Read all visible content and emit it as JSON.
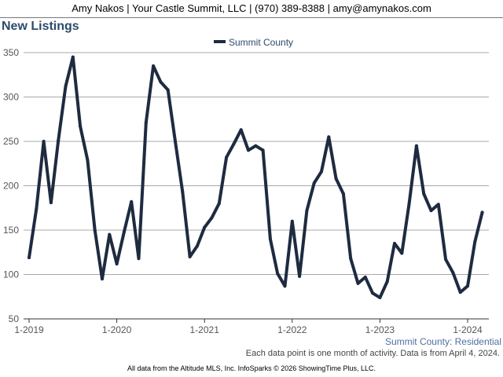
{
  "header": {
    "contact": "Amy Nakos | Your Castle Summit, LLC | (970) 389-8388 | amy@amynakos.com"
  },
  "chart_data": {
    "type": "line",
    "title": "New Listings",
    "xlabel": "",
    "ylabel": "",
    "ylim": [
      50,
      350
    ],
    "yticks": [
      50,
      100,
      150,
      200,
      250,
      300,
      350
    ],
    "xtick_labels": [
      "1-2019",
      "1-2020",
      "1-2021",
      "1-2022",
      "1-2023",
      "1-2024"
    ],
    "grid": true,
    "legend": "top-center",
    "series": [
      {
        "name": "Summit County",
        "color": "#1e2b40",
        "x": [
          "2019-01",
          "2019-02",
          "2019-03",
          "2019-04",
          "2019-05",
          "2019-06",
          "2019-07",
          "2019-08",
          "2019-09",
          "2019-10",
          "2019-11",
          "2019-12",
          "2020-01",
          "2020-02",
          "2020-03",
          "2020-04",
          "2020-05",
          "2020-06",
          "2020-07",
          "2020-08",
          "2020-09",
          "2020-10",
          "2020-11",
          "2020-12",
          "2021-01",
          "2021-02",
          "2021-03",
          "2021-04",
          "2021-05",
          "2021-06",
          "2021-07",
          "2021-08",
          "2021-09",
          "2021-10",
          "2021-11",
          "2021-12",
          "2022-01",
          "2022-02",
          "2022-03",
          "2022-04",
          "2022-05",
          "2022-06",
          "2022-07",
          "2022-08",
          "2022-09",
          "2022-10",
          "2022-11",
          "2022-12",
          "2023-01",
          "2023-02",
          "2023-03",
          "2023-04",
          "2023-05",
          "2023-06",
          "2023-07",
          "2023-08",
          "2023-09",
          "2023-10",
          "2023-11",
          "2023-12",
          "2024-01",
          "2024-02",
          "2024-03"
        ],
        "values": [
          119,
          174,
          250,
          181,
          251,
          312,
          345,
          267,
          229,
          150,
          95,
          145,
          112,
          148,
          182,
          118,
          271,
          335,
          317,
          308,
          250,
          193,
          120,
          132,
          153,
          164,
          180,
          232,
          247,
          263,
          240,
          245,
          240,
          140,
          101,
          87,
          160,
          98,
          172,
          203,
          216,
          255,
          208,
          191,
          118,
          90,
          97,
          79,
          74,
          92,
          135,
          124,
          180,
          245,
          191,
          172,
          179,
          117,
          102,
          80,
          87,
          137,
          170
        ]
      }
    ]
  },
  "footer": {
    "source_label": "Summit County: Residential",
    "note": "Each data point is one month of activity. Data is from April 4, 2024.",
    "credit": "All data from the Altitude MLS, Inc. InfoSparks © 2026 ShowingTime Plus, LLC."
  }
}
